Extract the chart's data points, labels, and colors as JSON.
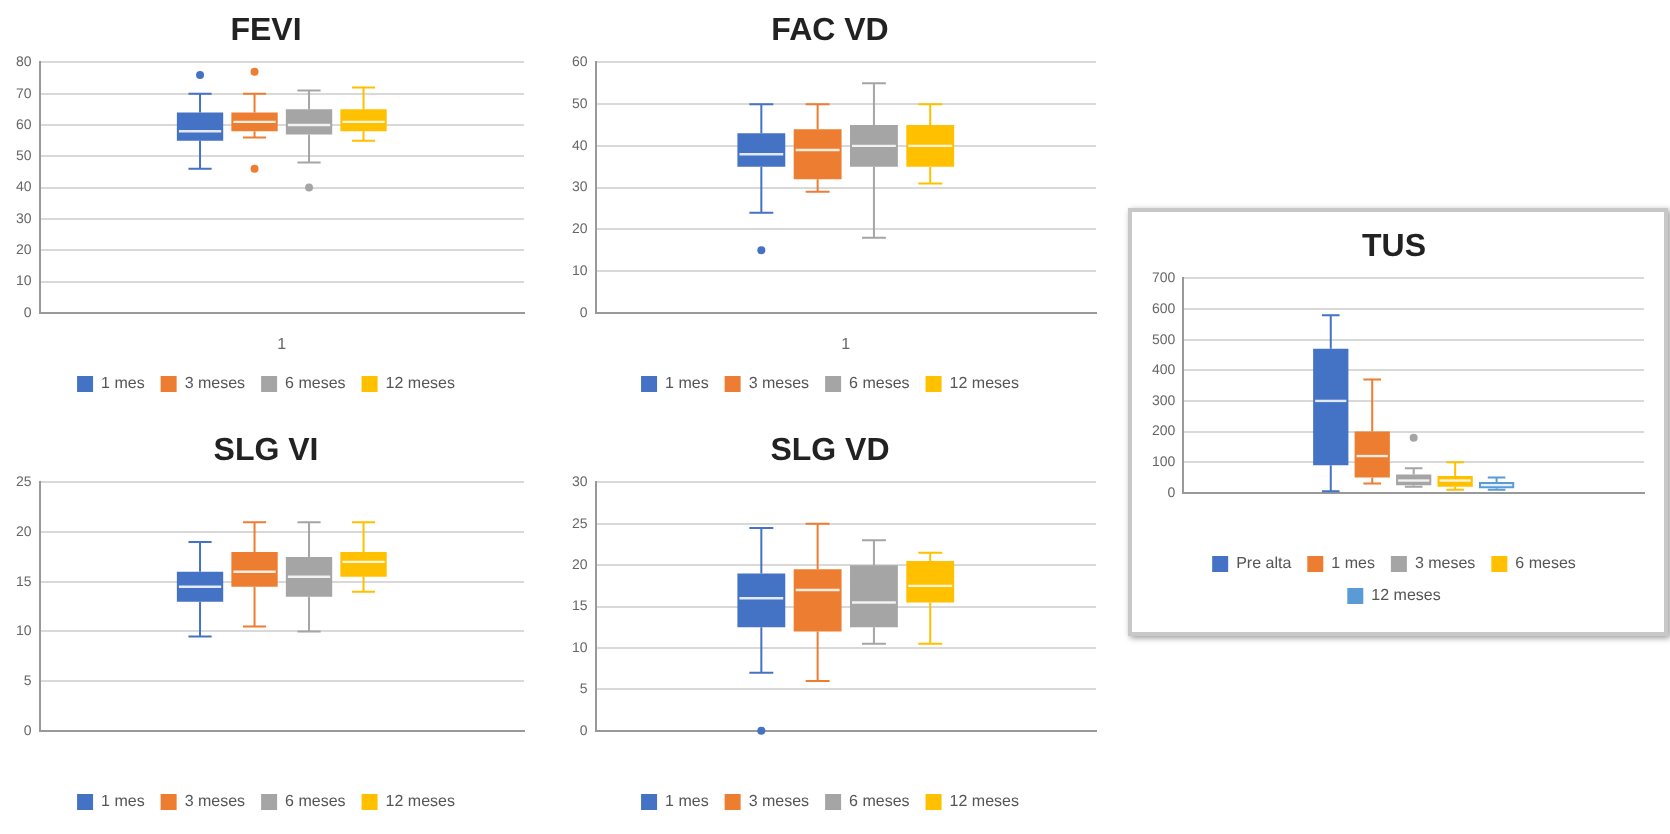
{
  "chart_data": [
    {
      "type": "box",
      "title": "FEVI",
      "categories": [
        "1"
      ],
      "ylim": [
        0,
        80
      ],
      "yticks": [
        0,
        10,
        20,
        30,
        40,
        50,
        60,
        70,
        80
      ],
      "grid": "y",
      "legend": "bottom",
      "marker": "circle",
      "series": [
        {
          "name": "1 mes",
          "color": "#4472c4",
          "boxes": [
            {
              "low": 46,
              "q1": 55,
              "median": 58,
              "q3": 64,
              "high": 70,
              "outliers": [
                76
              ]
            }
          ]
        },
        {
          "name": "3 meses",
          "color": "#ed7d31",
          "boxes": [
            {
              "low": 56,
              "q1": 58,
              "median": 61,
              "q3": 64,
              "high": 70,
              "outliers": [
                77,
                46
              ]
            }
          ]
        },
        {
          "name": "6 meses",
          "color": "#a5a5a5",
          "boxes": [
            {
              "low": 48,
              "q1": 57,
              "median": 60,
              "q3": 65,
              "high": 71,
              "outliers": [
                40
              ]
            }
          ]
        },
        {
          "name": "12 meses",
          "color": "#ffc000",
          "boxes": [
            {
              "low": 55,
              "q1": 58,
              "median": 61,
              "q3": 65,
              "high": 72
            }
          ]
        }
      ]
    },
    {
      "type": "box",
      "title": "FAC VD",
      "categories": [
        "1"
      ],
      "ylim": [
        0,
        60
      ],
      "yticks": [
        0,
        10,
        20,
        30,
        40,
        50,
        60
      ],
      "grid": "y",
      "legend": "bottom",
      "marker": "circle",
      "series": [
        {
          "name": "1 mes",
          "color": "#4472c4",
          "boxes": [
            {
              "low": 24,
              "q1": 35,
              "median": 38,
              "q3": 43,
              "high": 50,
              "outliers": [
                15
              ]
            }
          ]
        },
        {
          "name": "3 meses",
          "color": "#ed7d31",
          "boxes": [
            {
              "low": 29,
              "q1": 32,
              "median": 39,
              "q3": 44,
              "high": 50
            }
          ]
        },
        {
          "name": "6 meses",
          "color": "#a5a5a5",
          "boxes": [
            {
              "low": 18,
              "q1": 35,
              "median": 40,
              "q3": 45,
              "high": 55
            }
          ]
        },
        {
          "name": "12 meses",
          "color": "#ffc000",
          "boxes": [
            {
              "low": 31,
              "q1": 35,
              "median": 40,
              "q3": 45,
              "high": 50
            }
          ]
        }
      ]
    },
    {
      "type": "box",
      "title": "SLG VI",
      "categories": [
        null
      ],
      "ylim": [
        0,
        25
      ],
      "yticks": [
        0,
        5,
        10,
        15,
        20,
        25
      ],
      "grid": "y",
      "legend": "bottom",
      "series": [
        {
          "name": "1 mes",
          "color": "#4472c4",
          "boxes": [
            {
              "low": 9.5,
              "q1": 13,
              "median": 14.5,
              "q3": 16,
              "high": 19
            }
          ]
        },
        {
          "name": "3 meses",
          "color": "#ed7d31",
          "boxes": [
            {
              "low": 10.5,
              "q1": 14.5,
              "median": 16,
              "q3": 18,
              "high": 21
            }
          ]
        },
        {
          "name": "6 meses",
          "color": "#a5a5a5",
          "boxes": [
            {
              "low": 10,
              "q1": 13.5,
              "median": 15.5,
              "q3": 17.5,
              "high": 21
            }
          ]
        },
        {
          "name": "12 meses",
          "color": "#ffc000",
          "boxes": [
            {
              "low": 14,
              "q1": 15.5,
              "median": 17,
              "q3": 18,
              "high": 21
            }
          ]
        }
      ]
    },
    {
      "type": "box",
      "title": "SLG VD",
      "categories": [
        null
      ],
      "ylim": [
        0,
        30
      ],
      "yticks": [
        0,
        5,
        10,
        15,
        20,
        25,
        30
      ],
      "grid": "y",
      "legend": "bottom",
      "marker": "circle",
      "series": [
        {
          "name": "1 mes",
          "color": "#4472c4",
          "boxes": [
            {
              "low": 7,
              "q1": 12.5,
              "median": 16,
              "q3": 19,
              "high": 24.5,
              "outliers": [
                0
              ]
            }
          ]
        },
        {
          "name": "3 meses",
          "color": "#ed7d31",
          "boxes": [
            {
              "low": 6,
              "q1": 12,
              "median": 17,
              "q3": 19.5,
              "high": 25
            }
          ]
        },
        {
          "name": "6 meses",
          "color": "#a5a5a5",
          "boxes": [
            {
              "low": 10.5,
              "q1": 12.5,
              "median": 15.5,
              "q3": 20,
              "high": 23
            }
          ]
        },
        {
          "name": "12 meses",
          "color": "#ffc000",
          "boxes": [
            {
              "low": 10.5,
              "q1": 15.5,
              "median": 17.5,
              "q3": 20.5,
              "high": 21.5
            }
          ]
        }
      ]
    },
    {
      "type": "box",
      "title": "TUS",
      "categories": [
        null
      ],
      "ylim": [
        0,
        700
      ],
      "yticks": [
        0,
        100,
        200,
        300,
        400,
        500,
        600,
        700
      ],
      "grid": "y",
      "legend": "bottom",
      "marker": "circle",
      "series": [
        {
          "name": "Pre alta",
          "color": "#4472c4",
          "boxes": [
            {
              "low": 5,
              "q1": 90,
              "median": 300,
              "q3": 470,
              "high": 580
            }
          ]
        },
        {
          "name": "1 mes",
          "color": "#ed7d31",
          "boxes": [
            {
              "low": 30,
              "q1": 50,
              "median": 120,
              "q3": 200,
              "high": 370
            }
          ]
        },
        {
          "name": "3 meses",
          "color": "#a5a5a5",
          "boxes": [
            {
              "low": 20,
              "q1": 25,
              "median": 40,
              "q3": 60,
              "high": 80,
              "outliers": [
                180
              ]
            }
          ]
        },
        {
          "name": "6 meses",
          "color": "#ffc000",
          "boxes": [
            {
              "low": 10,
              "q1": 20,
              "median": 40,
              "q3": 55,
              "high": 100
            }
          ]
        },
        {
          "name": "12 meses",
          "color": "#5b9bd5",
          "boxes": [
            {
              "low": 10,
              "q1": 15,
              "median": 25,
              "q3": 35,
              "high": 50
            }
          ]
        }
      ]
    }
  ]
}
